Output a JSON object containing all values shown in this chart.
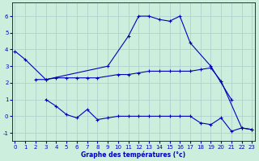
{
  "xlabel": "Graphe des températures (°c)",
  "background_color": "#cceedd",
  "grid_color": "#aacccc",
  "line_color": "#0000bb",
  "ylim": [
    -1.5,
    6.8
  ],
  "xlim": [
    -0.3,
    23.3
  ],
  "yticks": [
    -1,
    0,
    1,
    2,
    3,
    4,
    5,
    6
  ],
  "xticks": [
    0,
    1,
    2,
    3,
    4,
    5,
    6,
    7,
    8,
    9,
    10,
    11,
    12,
    13,
    14,
    15,
    16,
    17,
    18,
    19,
    20,
    21,
    22,
    23
  ],
  "line1_x": [
    0,
    1,
    3,
    9,
    11,
    12,
    13,
    14,
    15,
    16,
    17,
    19,
    21
  ],
  "line1_y": [
    3.9,
    3.4,
    2.2,
    3.0,
    4.8,
    6.0,
    6.0,
    5.8,
    5.7,
    6.0,
    4.4,
    3.0,
    1.0
  ],
  "line2_x": [
    2,
    3,
    4,
    5,
    6,
    7,
    8,
    10,
    11,
    12,
    13,
    14,
    15,
    16,
    17,
    18,
    19,
    20,
    22,
    23
  ],
  "line2_y": [
    2.2,
    2.2,
    2.3,
    2.3,
    2.3,
    2.3,
    2.3,
    2.5,
    2.5,
    2.6,
    2.7,
    2.7,
    2.7,
    2.7,
    2.7,
    2.8,
    2.9,
    2.1,
    -0.7,
    -0.8
  ],
  "line3_x": [
    3,
    4,
    5,
    6,
    7,
    8,
    9,
    10,
    11,
    12,
    13,
    14,
    15,
    16,
    17,
    18,
    19,
    20,
    21,
    22,
    23
  ],
  "line3_y": [
    1.0,
    0.6,
    0.1,
    -0.1,
    0.4,
    -0.2,
    -0.1,
    0.0,
    0.0,
    0.0,
    0.0,
    0.0,
    0.0,
    0.0,
    0.0,
    -0.4,
    -0.5,
    -0.1,
    -0.9,
    -0.7,
    -0.8
  ],
  "lw": 0.8,
  "ms": 2.5,
  "tick_fontsize": 5,
  "xlabel_fontsize": 5.5
}
